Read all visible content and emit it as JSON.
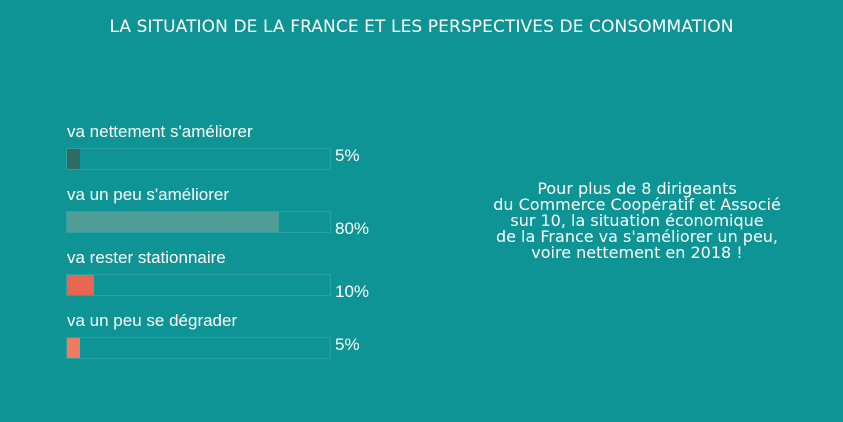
{
  "header": {
    "title": "LA SITUATION DE LA FRANCE ET LES PERSPECTIVES DE CONSOMMATION"
  },
  "chart_data": {
    "type": "bar",
    "orientation": "horizontal",
    "categories": [
      "va nettement s'améliorer",
      "va un peu s'améliorer",
      "va rester stationnaire",
      "va un peu se dégrader"
    ],
    "values": [
      5,
      80,
      10,
      5
    ],
    "value_labels": [
      "5%",
      "80%",
      "10%",
      "5%"
    ],
    "colors": [
      "#2f6b62",
      "#4f9e98",
      "#e8664f",
      "#f07a62"
    ],
    "xlim": [
      0,
      100
    ]
  },
  "note": {
    "lines": [
      "Pour plus de 8 dirigeants",
      "du Commerce Coopératif et Associé",
      "sur 10, la situation économique",
      "de la France va s'améliorer un peu,",
      "voire nettement en 2018 !"
    ]
  }
}
